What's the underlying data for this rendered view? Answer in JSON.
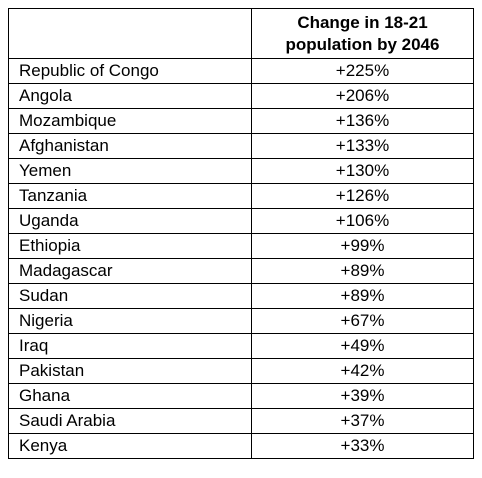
{
  "chart_data": {
    "type": "table",
    "columns": [
      "",
      "Change in 18-21 population by 2046"
    ],
    "header_lines": [
      "Change in 18-21",
      "population by 2046"
    ],
    "rows": [
      {
        "country": "Republic of Congo",
        "change": "+225%"
      },
      {
        "country": "Angola",
        "change": "+206%"
      },
      {
        "country": "Mozambique",
        "change": "+136%"
      },
      {
        "country": "Afghanistan",
        "change": "+133%"
      },
      {
        "country": "Yemen",
        "change": "+130%"
      },
      {
        "country": "Tanzania",
        "change": "+126%"
      },
      {
        "country": "Uganda",
        "change": "+106%"
      },
      {
        "country": "Ethiopia",
        "change": "+99%"
      },
      {
        "country": "Madagascar",
        "change": "+89%"
      },
      {
        "country": "Sudan",
        "change": "+89%"
      },
      {
        "country": "Nigeria",
        "change": "+67%"
      },
      {
        "country": "Iraq",
        "change": "+49%"
      },
      {
        "country": "Pakistan",
        "change": "+42%"
      },
      {
        "country": "Ghana",
        "change": "+39%"
      },
      {
        "country": "Saudi Arabia",
        "change": "+37%"
      },
      {
        "country": "Kenya",
        "change": "+33%"
      }
    ]
  }
}
